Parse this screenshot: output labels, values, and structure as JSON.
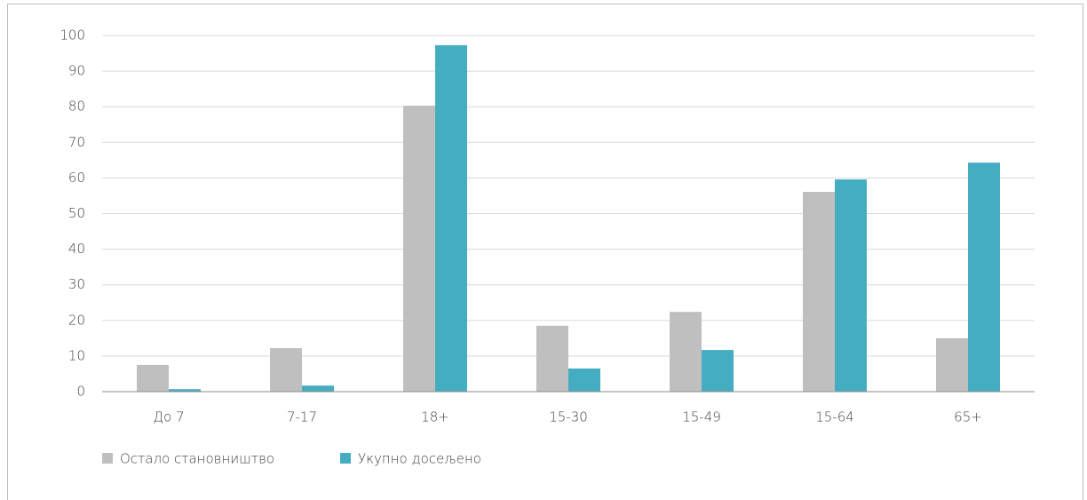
{
  "chart_data": {
    "type": "bar",
    "categories": [
      "До 7",
      "7-17",
      "18+",
      "15-30",
      "15-49",
      "15-64",
      "65+"
    ],
    "series": [
      {
        "name": "Остало становништво",
        "color": "#bfbfbf",
        "values": [
          7.5,
          12.2,
          80.3,
          18.5,
          22.4,
          56.1,
          15.0
        ]
      },
      {
        "name": "Укупно досељено",
        "color": "#45adc2",
        "values": [
          0.7,
          1.7,
          97.3,
          6.5,
          11.7,
          59.6,
          64.3
        ]
      }
    ],
    "ylim": [
      0,
      100
    ],
    "yticks": [
      0,
      10,
      20,
      30,
      40,
      50,
      60,
      70,
      80,
      90,
      100
    ],
    "grid": true,
    "legend": "bottom-left"
  }
}
